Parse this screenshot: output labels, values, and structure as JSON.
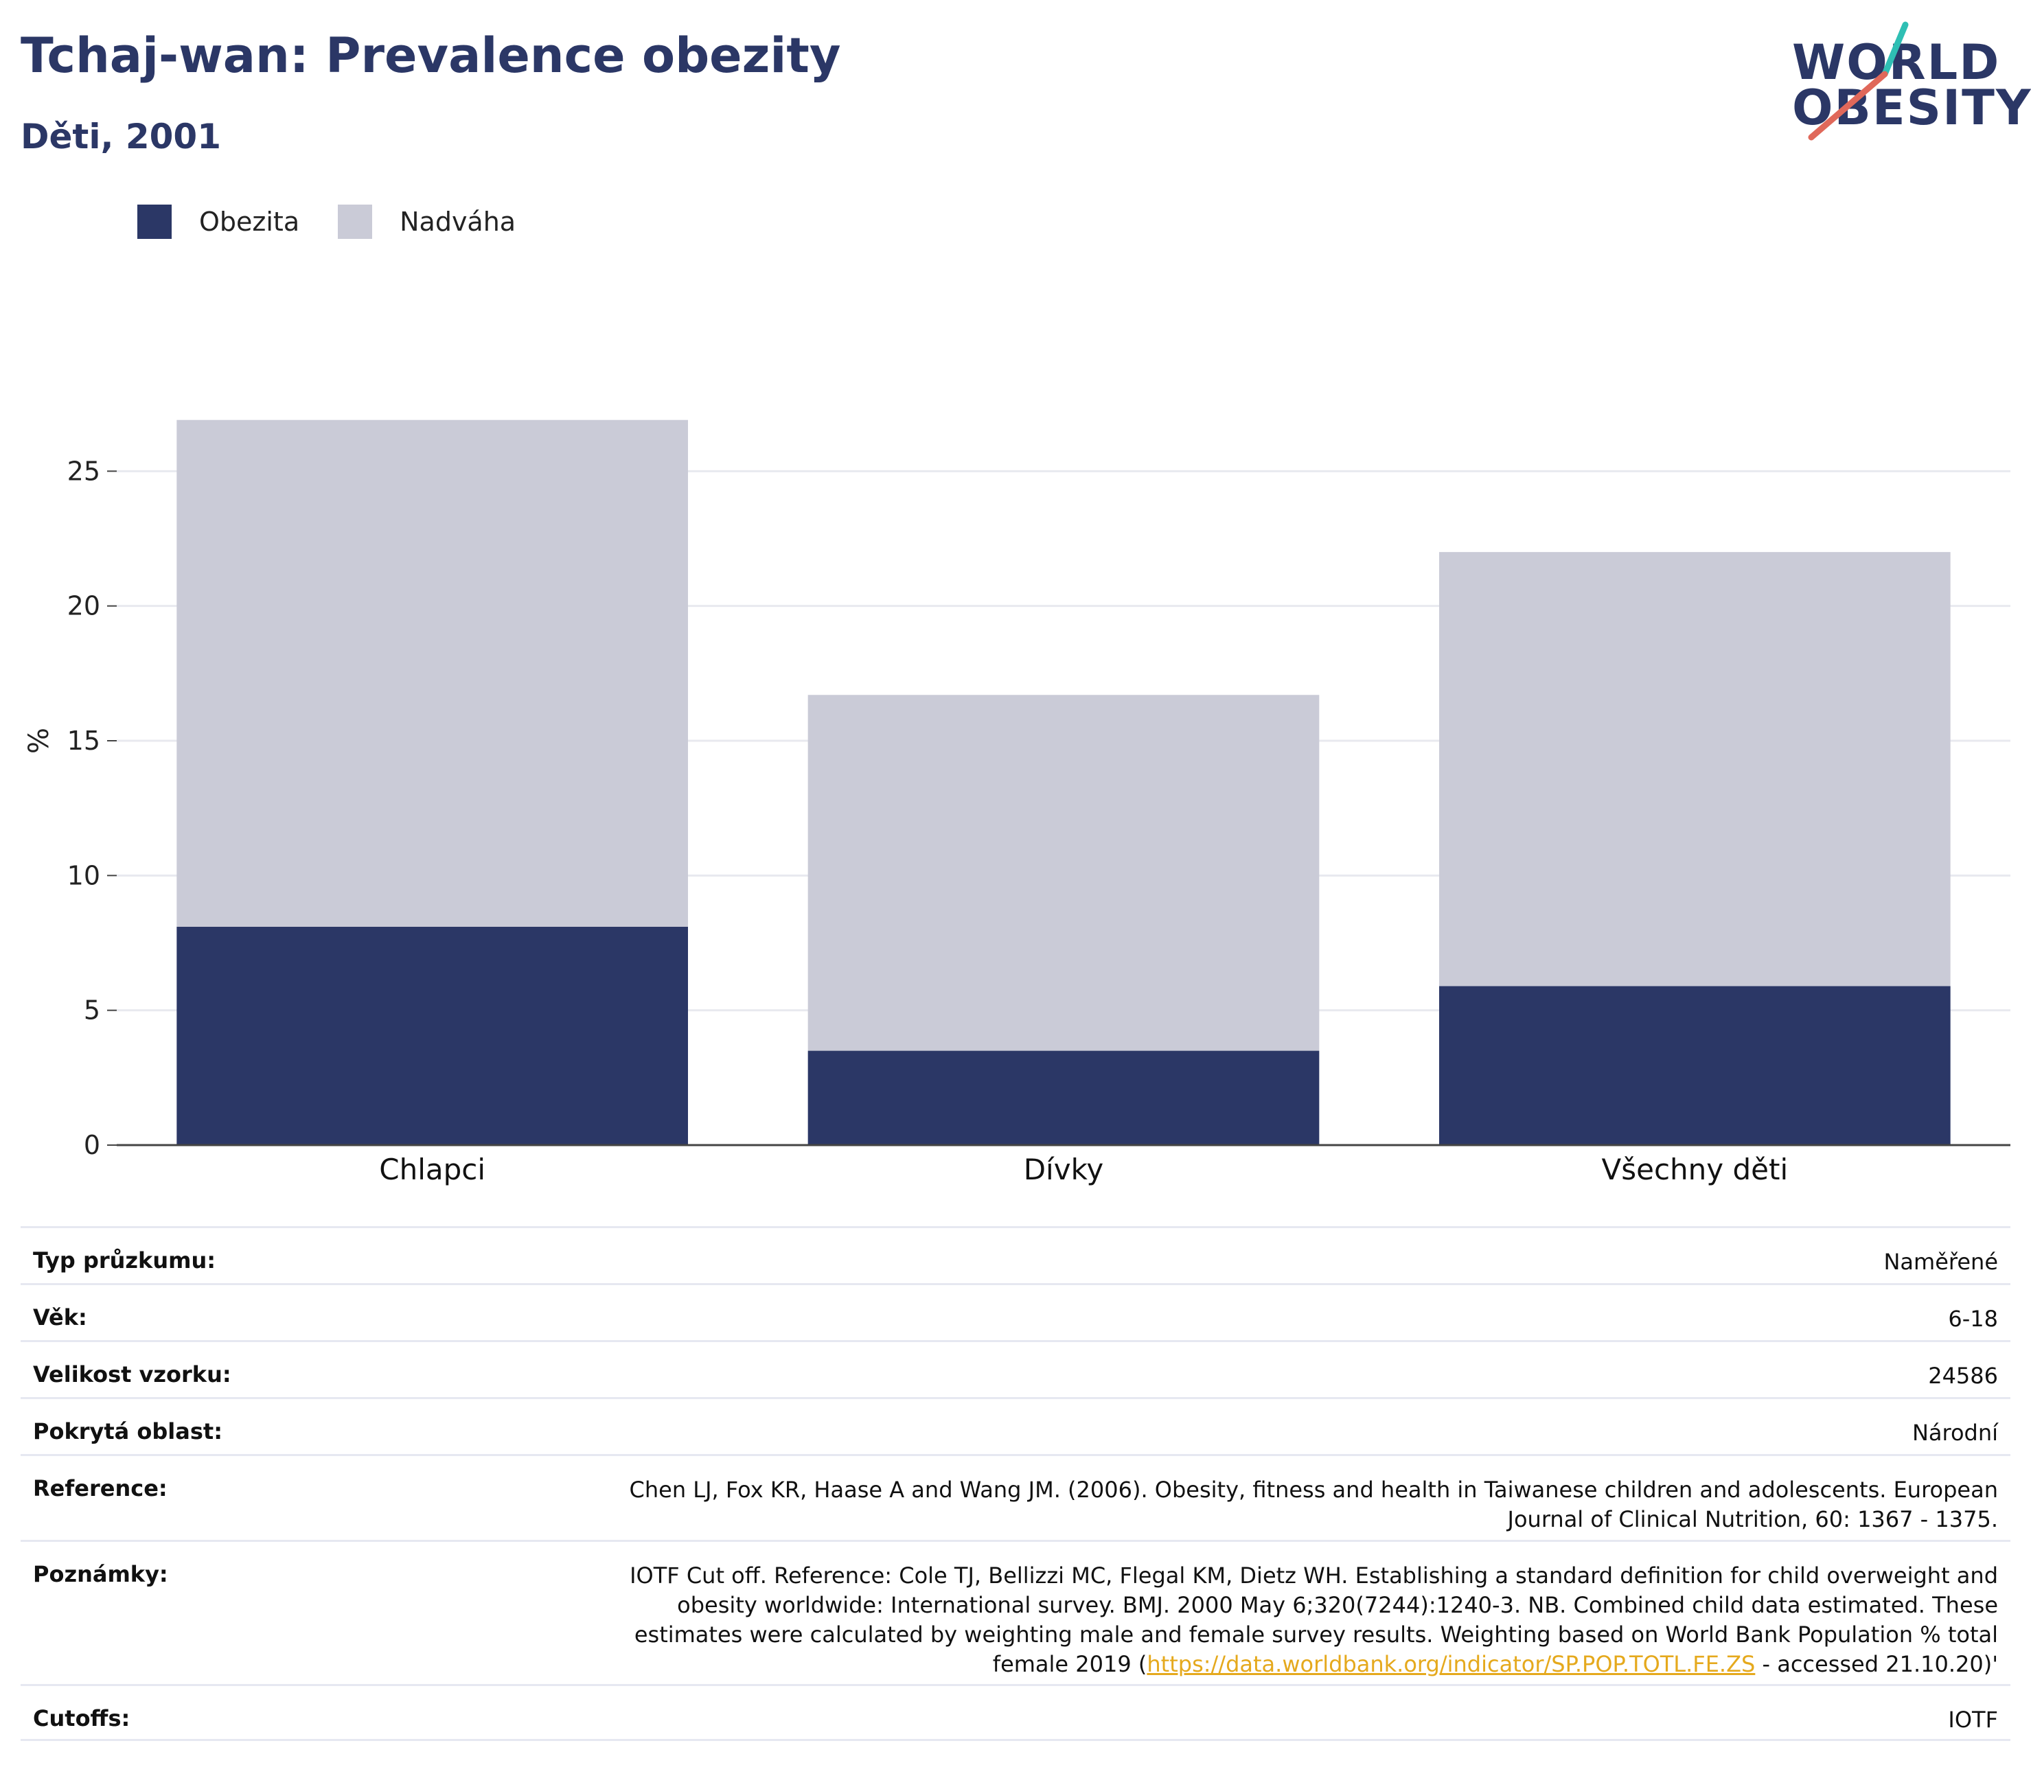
{
  "header": {
    "title": "Tchaj-wan: Prevalence obezity",
    "subtitle": "Děti, 2001"
  },
  "logo": {
    "line1": "WORLD",
    "line2": "OBESITY"
  },
  "colors": {
    "obesity": "#2b3766",
    "overweight": "#cacbd7",
    "accent": "#2b3766",
    "link": "#e5a91d"
  },
  "legend": {
    "items": [
      "Obezita",
      "Nadváha"
    ]
  },
  "chart_data": {
    "type": "bar",
    "stacked": true,
    "categories": [
      "Chlapci",
      "Dívky",
      "Všechny děti"
    ],
    "series": [
      {
        "name": "Obezita",
        "values": [
          8.1,
          3.5,
          5.9
        ]
      },
      {
        "name": "Nadváha",
        "values": [
          18.8,
          13.2,
          16.1
        ]
      }
    ],
    "totals": [
      26.9,
      16.7,
      22.0
    ],
    "ylabel": "%",
    "yticks": [
      0,
      5,
      10,
      15,
      20,
      25
    ],
    "ylim": [
      0,
      30
    ],
    "grid": true,
    "legend_position": "top-left"
  },
  "info": {
    "rows": [
      {
        "key": "Typ průzkumu:",
        "value": "Naměřené"
      },
      {
        "key": "Věk:",
        "value": "6-18"
      },
      {
        "key": "Velikost vzorku:",
        "value": "24586"
      },
      {
        "key": "Pokrytá oblast:",
        "value": "Národní"
      },
      {
        "key": "Reference:",
        "value": "Chen LJ, Fox KR, Haase A and Wang JM. (2006). Obesity, fitness and health in Taiwanese children and adolescents. European Journal of Clinical Nutrition, 60: 1367 - 1375."
      }
    ],
    "notes": {
      "key": "Poznámky:",
      "text_before": "IOTF Cut off. Reference: Cole TJ, Bellizzi MC, Flegal KM, Dietz WH. Establishing a standard definition for child overweight and obesity worldwide: International survey. BMJ. 2000 May 6;320(7244):1240-3. NB. Combined child data estimated. These estimates were calculated by weighting male and female survey results. Weighting based on World Bank Population % total female 2019 (",
      "link": "https://data.worldbank.org/indicator/SP.POP.TOTL.FE.ZS",
      "text_after": " - accessed 21.10.20)'"
    },
    "cutoffs": {
      "key": "Cutoffs:",
      "value": "IOTF"
    }
  }
}
